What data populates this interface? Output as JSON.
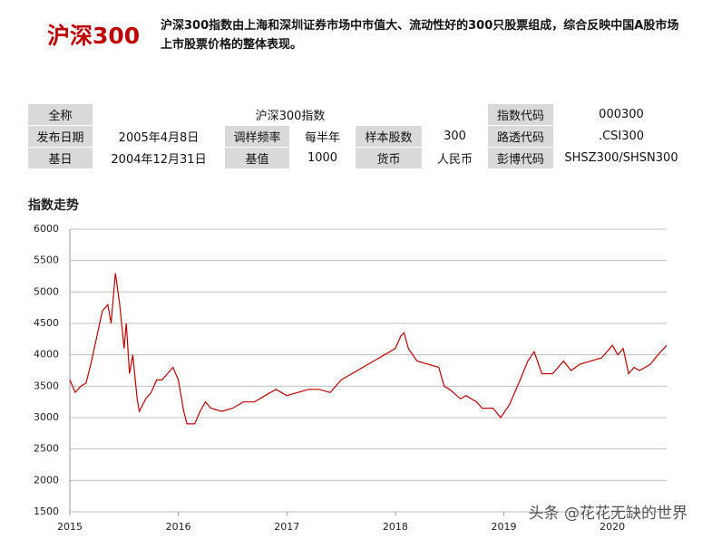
{
  "header": {
    "title": "沪深300",
    "description": "沪深300指数由上海和深圳证券市场中市值大、流动性好的300只股票组成，综合反映中国A股市场上市股票价格的整体表现。"
  },
  "table": {
    "rows": [
      [
        "全称",
        "沪深300指数",
        "指数代码",
        "000300"
      ],
      [
        "发布日期",
        "2005年4月8日",
        "调样频率",
        "每半年",
        "样本股数",
        "300",
        "路透代码",
        ".CSI300"
      ],
      [
        "基日",
        "2004年12月31日",
        "基值",
        "1000",
        "货币",
        "人民币",
        "彭博代码",
        "SHSZ300/SHSN300"
      ]
    ]
  },
  "chart_data": {
    "type": "line",
    "title": "指数走势",
    "x": [
      2015.0,
      2015.05,
      2015.1,
      2015.15,
      2015.2,
      2015.25,
      2015.3,
      2015.35,
      2015.38,
      2015.42,
      2015.46,
      2015.5,
      2015.52,
      2015.55,
      2015.58,
      2015.62,
      2015.64,
      2015.7,
      2015.75,
      2015.8,
      2015.85,
      2015.9,
      2015.95,
      2016.0,
      2016.05,
      2016.08,
      2016.15,
      2016.2,
      2016.25,
      2016.3,
      2016.4,
      2016.5,
      2016.6,
      2016.7,
      2016.8,
      2016.9,
      2017.0,
      2017.1,
      2017.2,
      2017.3,
      2017.4,
      2017.5,
      2017.6,
      2017.7,
      2017.8,
      2017.9,
      2018.0,
      2018.05,
      2018.08,
      2018.12,
      2018.2,
      2018.3,
      2018.4,
      2018.45,
      2018.5,
      2018.6,
      2018.65,
      2018.75,
      2018.8,
      2018.9,
      2018.97,
      2019.05,
      2019.15,
      2019.22,
      2019.28,
      2019.35,
      2019.45,
      2019.55,
      2019.62,
      2019.7,
      2019.8,
      2019.9,
      2020.0,
      2020.05,
      2020.1,
      2020.15,
      2020.2,
      2020.25,
      2020.35,
      2020.42,
      2020.5
    ],
    "series": [
      {
        "color": "#c00000",
        "values": [
          3600,
          3400,
          3500,
          3550,
          3900,
          4300,
          4700,
          4800,
          4500,
          5300,
          4800,
          4100,
          4500,
          3700,
          4000,
          3300,
          3100,
          3300,
          3400,
          3600,
          3600,
          3700,
          3800,
          3600,
          3100,
          2900,
          2900,
          3100,
          3250,
          3150,
          3100,
          3150,
          3250,
          3250,
          3350,
          3450,
          3350,
          3400,
          3450,
          3450,
          3400,
          3600,
          3700,
          3800,
          3900,
          4000,
          4100,
          4300,
          4350,
          4100,
          3900,
          3850,
          3800,
          3500,
          3450,
          3300,
          3350,
          3250,
          3150,
          3150,
          3000,
          3200,
          3600,
          3900,
          4050,
          3700,
          3700,
          3900,
          3750,
          3850,
          3900,
          3950,
          4150,
          4000,
          4100,
          3700,
          3800,
          3750,
          3850,
          4000,
          4150
        ]
      }
    ],
    "xlim": [
      2015,
      2020.5
    ],
    "xticks": [
      2015,
      2016,
      2017,
      2018,
      2019,
      2020
    ],
    "ylim": [
      1500,
      6000
    ],
    "yticks": [
      1500,
      2000,
      2500,
      3000,
      3500,
      4000,
      4500,
      5000,
      5500,
      6000
    ],
    "grid": true
  },
  "watermark": "头条 @花花无缺的世界"
}
